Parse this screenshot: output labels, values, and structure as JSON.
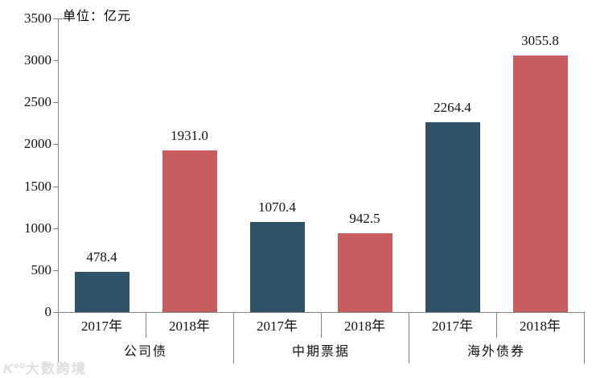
{
  "chart_data": {
    "type": "bar",
    "unit_label": "单位：亿元",
    "categories": [
      "公司债",
      "中期票据",
      "海外债券"
    ],
    "series": [
      {
        "name": "2017年",
        "color": "#2F5266",
        "values": [
          478.4,
          1070.4,
          2264.4
        ],
        "labels": [
          "478.4",
          "1070.4",
          "2264.4"
        ]
      },
      {
        "name": "2018年",
        "color": "#C85D60",
        "values": [
          1931.0,
          942.5,
          3055.8
        ],
        "labels": [
          "1931.0",
          "942.5",
          "3055.8"
        ]
      }
    ],
    "ylim": [
      0,
      3500
    ],
    "yticks": [
      0,
      500,
      1000,
      1500,
      2000,
      2500,
      3000,
      3500
    ],
    "grid": false,
    "legend_position": "none",
    "axis_color": "#808080",
    "text_color": "#111111"
  },
  "watermark": {
    "logo": "K°°",
    "text": "大数跨境"
  }
}
